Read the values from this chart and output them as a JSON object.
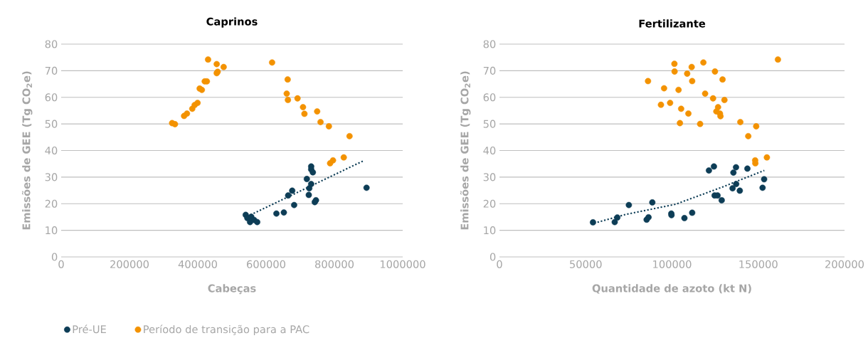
{
  "chart_data": [
    {
      "type": "scatter",
      "title": "Caprinos",
      "xlabel": "Cabeças",
      "ylabel": "Emissões de GEE (Tg CO$_{2}$e)",
      "xlim": [
        0,
        1000000
      ],
      "xticks": [
        0,
        200000,
        400000,
        600000,
        800000,
        1000000
      ],
      "ylim": [
        0,
        80
      ],
      "yticks": [
        0,
        10,
        20,
        30,
        40,
        50,
        60,
        70,
        80
      ],
      "grid": "y",
      "legend": "bottom",
      "series": [
        {
          "name": "Pré-UE",
          "color": "#0d3d56",
          "x": [
            540300,
            545200,
            556500,
            553000,
            564900,
            574000,
            630200,
            652000,
            664600,
            676500,
            682100,
            719300,
            732000,
            732000,
            736900,
            732000,
            726400,
            725000,
            742500,
            746000,
            894100
          ],
          "values": [
            15.8,
            14.6,
            15.1,
            13.1,
            13.9,
            13.1,
            16.3,
            16.7,
            23.1,
            24.9,
            19.5,
            29.3,
            34.0,
            32.9,
            31.8,
            27.4,
            25.8,
            23.3,
            20.6,
            21.3,
            26.0
          ]
        },
        {
          "name": "Período de transição para a PAC",
          "color": "#f39200",
          "x": [
            324800,
            333200,
            359900,
            368300,
            383800,
            390800,
            399300,
            405500,
            411900,
            420300,
            426600,
            430100,
            455400,
            475700,
            458200,
            455400,
            617550,
            663200,
            660400,
            663900,
            692000,
            708100,
            712300,
            749500,
            759400,
            783900,
            844300,
            827400,
            795900,
            787400
          ],
          "values": [
            50.3,
            49.9,
            53.0,
            53.9,
            55.7,
            57.1,
            57.9,
            63.3,
            62.8,
            66.0,
            66.0,
            74.2,
            72.5,
            71.4,
            69.6,
            69.1,
            73.1,
            66.7,
            61.4,
            59.0,
            59.6,
            56.3,
            53.8,
            54.7,
            50.7,
            49.1,
            45.4,
            37.4,
            36.3,
            35.2
          ]
        },
        {
          "type": "line",
          "color": "#0d3d56",
          "line_style": "dotted",
          "marker": "none",
          "x": [
            554300,
            887800
          ],
          "values": [
            15.8,
            36.3
          ]
        }
      ]
    },
    {
      "type": "scatter",
      "title": "Fertilizante",
      "xlabel": "Quantidade de azoto (kt N)",
      "ylabel": "Emissões de GEE (Tg CO$_{2}$e)",
      "xlim": [
        0,
        200000
      ],
      "xticks": [
        0,
        50000,
        100000,
        150000,
        200000
      ],
      "ylim": [
        0,
        80
      ],
      "yticks": [
        0,
        10,
        20,
        30,
        40,
        50,
        60,
        70,
        80
      ],
      "grid": "y",
      "series": [
        {
          "color": "#0d3d56",
          "x": [
            54200,
            66800,
            68300,
            75000,
            85300,
            86400,
            88600,
            99600,
            99700,
            107200,
            111700,
            121400,
            124300,
            124700,
            126400,
            128800,
            135100,
            135600,
            137100,
            137200,
            139300,
            143700,
            152500,
            153400
          ],
          "values": [
            13.0,
            13.1,
            14.8,
            19.5,
            14.0,
            14.9,
            20.5,
            16.3,
            15.7,
            14.6,
            16.6,
            32.5,
            34.0,
            23.1,
            23.1,
            21.3,
            25.8,
            31.7,
            33.7,
            27.4,
            24.9,
            33.2,
            26.0,
            29.2
          ]
        },
        {
          "color": "#f39200",
          "x": [
            161400,
            101400,
            118200,
            111400,
            101500,
            108800,
            124900,
            86100,
            111700,
            129300,
            95400,
            103800,
            119200,
            123800,
            130400,
            93600,
            98900,
            105300,
            109500,
            126700,
            125700,
            127800,
            128100,
            104600,
            116300,
            139600,
            148800,
            144200,
            148200,
            148300,
            155000
          ],
          "values": [
            74.2,
            72.6,
            73.1,
            71.4,
            69.7,
            68.9,
            69.7,
            66.1,
            66.1,
            66.7,
            63.4,
            62.8,
            61.4,
            59.6,
            59.0,
            57.2,
            57.9,
            55.7,
            53.9,
            56.3,
            54.7,
            53.9,
            52.9,
            50.3,
            50.0,
            50.7,
            49.1,
            45.4,
            36.3,
            35.2,
            37.4
          ]
        },
        {
          "type": "line",
          "color": "#0d3d56",
          "line_style": "dotted",
          "marker": "none",
          "x": [
            54900,
            73400,
            102100,
            128500,
            153500
          ],
          "values": [
            12.7,
            16.0,
            19.8,
            26.1,
            32.5
          ]
        }
      ]
    }
  ]
}
